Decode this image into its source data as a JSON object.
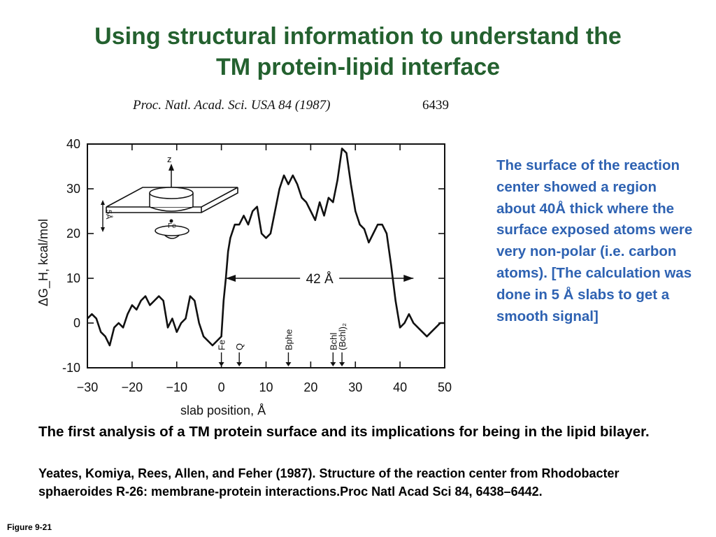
{
  "slide": {
    "title_line1": "Using structural information to understand the",
    "title_line2": "TM protein-lipid interface",
    "journal": "Proc. Natl. Acad. Sci. USA 84 (1987)",
    "page_number": "6439",
    "side_text": "The surface of the reaction center showed a region about 40Å thick where the surface exposed atoms were very non-polar (i.e. carbon atoms).  [The calculation was done in 5 Å slabs to get a smooth signal]",
    "summary": "The first analysis of a TM protein surface and its implications for being in the lipid bilayer.",
    "citation": "Yeates, Komiya, Rees, Allen, and Feher (1987). Structure of the reaction center from Rhodobacter sphaeroides R-26: membrane-protein interactions.Proc Natl Acad Sci 84, 6438–6442.",
    "figure_label": "Figure 9-21"
  },
  "chart_data": {
    "type": "line",
    "xlabel": "slab position, Å",
    "ylabel": "ΔG_H, kcal/mol",
    "xlim": [
      -30,
      50
    ],
    "ylim": [
      -10,
      40
    ],
    "x_ticks": [
      -30,
      -20,
      -10,
      0,
      10,
      20,
      30,
      40,
      50
    ],
    "y_ticks": [
      -10,
      0,
      10,
      20,
      30,
      40
    ],
    "x_tick_labels": [
      "−30",
      "−20",
      "−10",
      "0",
      "10",
      "20",
      "30",
      "40",
      "50"
    ],
    "y_tick_labels": [
      "-10",
      "0",
      "10",
      "20",
      "30",
      "40"
    ],
    "series": [
      {
        "x": [
          -30,
          -29,
          -28,
          -27,
          -26,
          -25,
          -24,
          -23,
          -22,
          -21,
          -20,
          -19,
          -18,
          -17,
          -16,
          -15,
          -14,
          -13,
          -12,
          -11,
          -10,
          -9,
          -8,
          -7,
          -6,
          -5,
          -4,
          -3,
          -2,
          -1,
          0,
          0.5,
          1,
          1.5,
          2,
          3,
          4,
          5,
          6,
          7,
          8,
          9,
          10,
          11,
          12,
          13,
          14,
          15,
          16,
          17,
          18,
          19,
          20,
          21,
          22,
          23,
          24,
          25,
          26,
          27,
          28,
          29,
          30,
          31,
          32,
          33,
          34,
          35,
          36,
          37,
          38,
          39,
          40,
          41,
          42,
          43,
          44,
          45,
          46,
          47,
          48,
          49,
          50
        ],
        "y": [
          1,
          2,
          1,
          -2,
          -3,
          -5,
          -1,
          0,
          -1,
          2,
          4,
          3,
          5,
          6,
          4,
          5,
          6,
          5,
          -1,
          1,
          -2,
          0,
          1,
          6,
          5,
          0,
          -3,
          -4,
          -5,
          -4,
          -3,
          5,
          10,
          16,
          19,
          22,
          22,
          24,
          22,
          25,
          26,
          20,
          19,
          20,
          25,
          30,
          33,
          31,
          33,
          31,
          28,
          27,
          25,
          23,
          27,
          24,
          28,
          27,
          32,
          39,
          38,
          31,
          25,
          22,
          21,
          18,
          20,
          22,
          22,
          20,
          13,
          5,
          -1,
          0,
          2,
          0,
          -1,
          -2,
          -3,
          -2,
          -1,
          0,
          0
        ]
      }
    ],
    "dimension": {
      "label": "42 Å",
      "from": 1,
      "to": 43,
      "y": 10
    },
    "markers": [
      {
        "label": "Fe",
        "x": 0
      },
      {
        "label": "Q",
        "x": 4
      },
      {
        "label": "Bphe",
        "x": 15
      },
      {
        "label": "Bchl",
        "x": 25
      },
      {
        "label": "(Bchl)₂",
        "x": 27
      }
    ],
    "inset": {
      "axis_label": "z",
      "scale_label": "5Å",
      "atom_label": "Fe"
    }
  }
}
